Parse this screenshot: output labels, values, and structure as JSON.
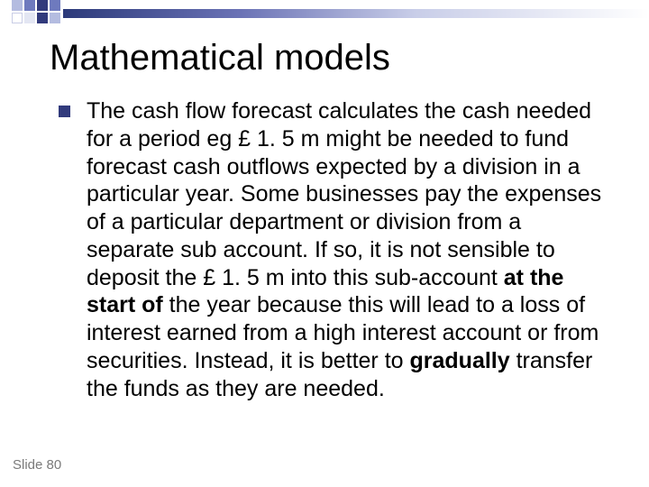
{
  "deco": {
    "gradient_from": "#2c3a7a",
    "gradient_mid1": "#6a72b5",
    "gradient_mid2": "#c8cde8",
    "gradient_to": "#ffffff",
    "square_colors": {
      "dark": "#313a7c",
      "mid": "#6e7abe",
      "light": "#b4bce0",
      "vlight": "#e3e6f3",
      "white": "#ffffff"
    }
  },
  "title": {
    "text": "Mathematical models",
    "fontsize": 40,
    "color": "#000000"
  },
  "bullet": {
    "color": "#313a7c",
    "size": 13
  },
  "body": {
    "seg1": "The cash flow forecast calculates the cash needed for a period eg £ 1. 5 m might be needed to fund forecast cash outflows expected by a division in a particular year. Some businesses pay the expenses of a particular department or division from a separate sub account. If so, it is not sensible to deposit the £ 1. 5 m into this sub-account ",
    "bold1": "at the start of",
    "seg2": " the year because this will lead to a loss of interest earned from a high interest account or from securities. Instead, it is better to ",
    "bold2": "gradually",
    "seg3": " transfer the funds as they are needed.",
    "fontsize": 25,
    "color": "#000000"
  },
  "footer": {
    "label": "Slide 80",
    "fontsize": 15,
    "color": "#7a7a7a"
  }
}
